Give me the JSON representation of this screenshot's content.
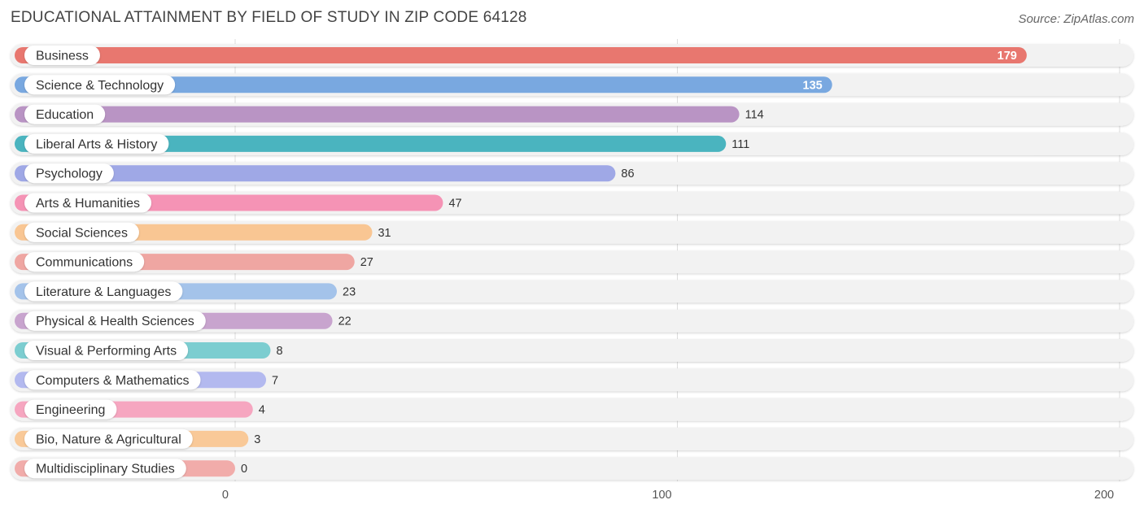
{
  "title": "EDUCATIONAL ATTAINMENT BY FIELD OF STUDY IN ZIP CODE 64128",
  "source": "Source: ZipAtlas.com",
  "chart_data": {
    "type": "bar",
    "orientation": "horizontal",
    "title": "EDUCATIONAL ATTAINMENT BY FIELD OF STUDY IN ZIP CODE 64128",
    "xlabel": "",
    "ylabel": "",
    "xlim": [
      0,
      200
    ],
    "ticks": [
      0,
      100,
      200
    ],
    "grid": true,
    "categories": [
      "Business",
      "Science & Technology",
      "Education",
      "Liberal Arts & History",
      "Psychology",
      "Arts & Humanities",
      "Social Sciences",
      "Communications",
      "Literature & Languages",
      "Physical & Health Sciences",
      "Visual & Performing Arts",
      "Computers & Mathematics",
      "Engineering",
      "Bio, Nature & Agricultural",
      "Multidisciplinary Studies"
    ],
    "values": [
      179,
      135,
      114,
      111,
      86,
      47,
      31,
      27,
      23,
      22,
      8,
      7,
      4,
      3,
      0
    ],
    "colors": [
      "#e8776f",
      "#79a8e0",
      "#b994c4",
      "#4ab4bf",
      "#9fa8e6",
      "#f593b5",
      "#f9c693",
      "#efa6a2",
      "#a4c3ea",
      "#c8a4ce",
      "#7ccdd0",
      "#b3b9ef",
      "#f6a6c0",
      "#f9c998",
      "#f1acaa"
    ]
  }
}
